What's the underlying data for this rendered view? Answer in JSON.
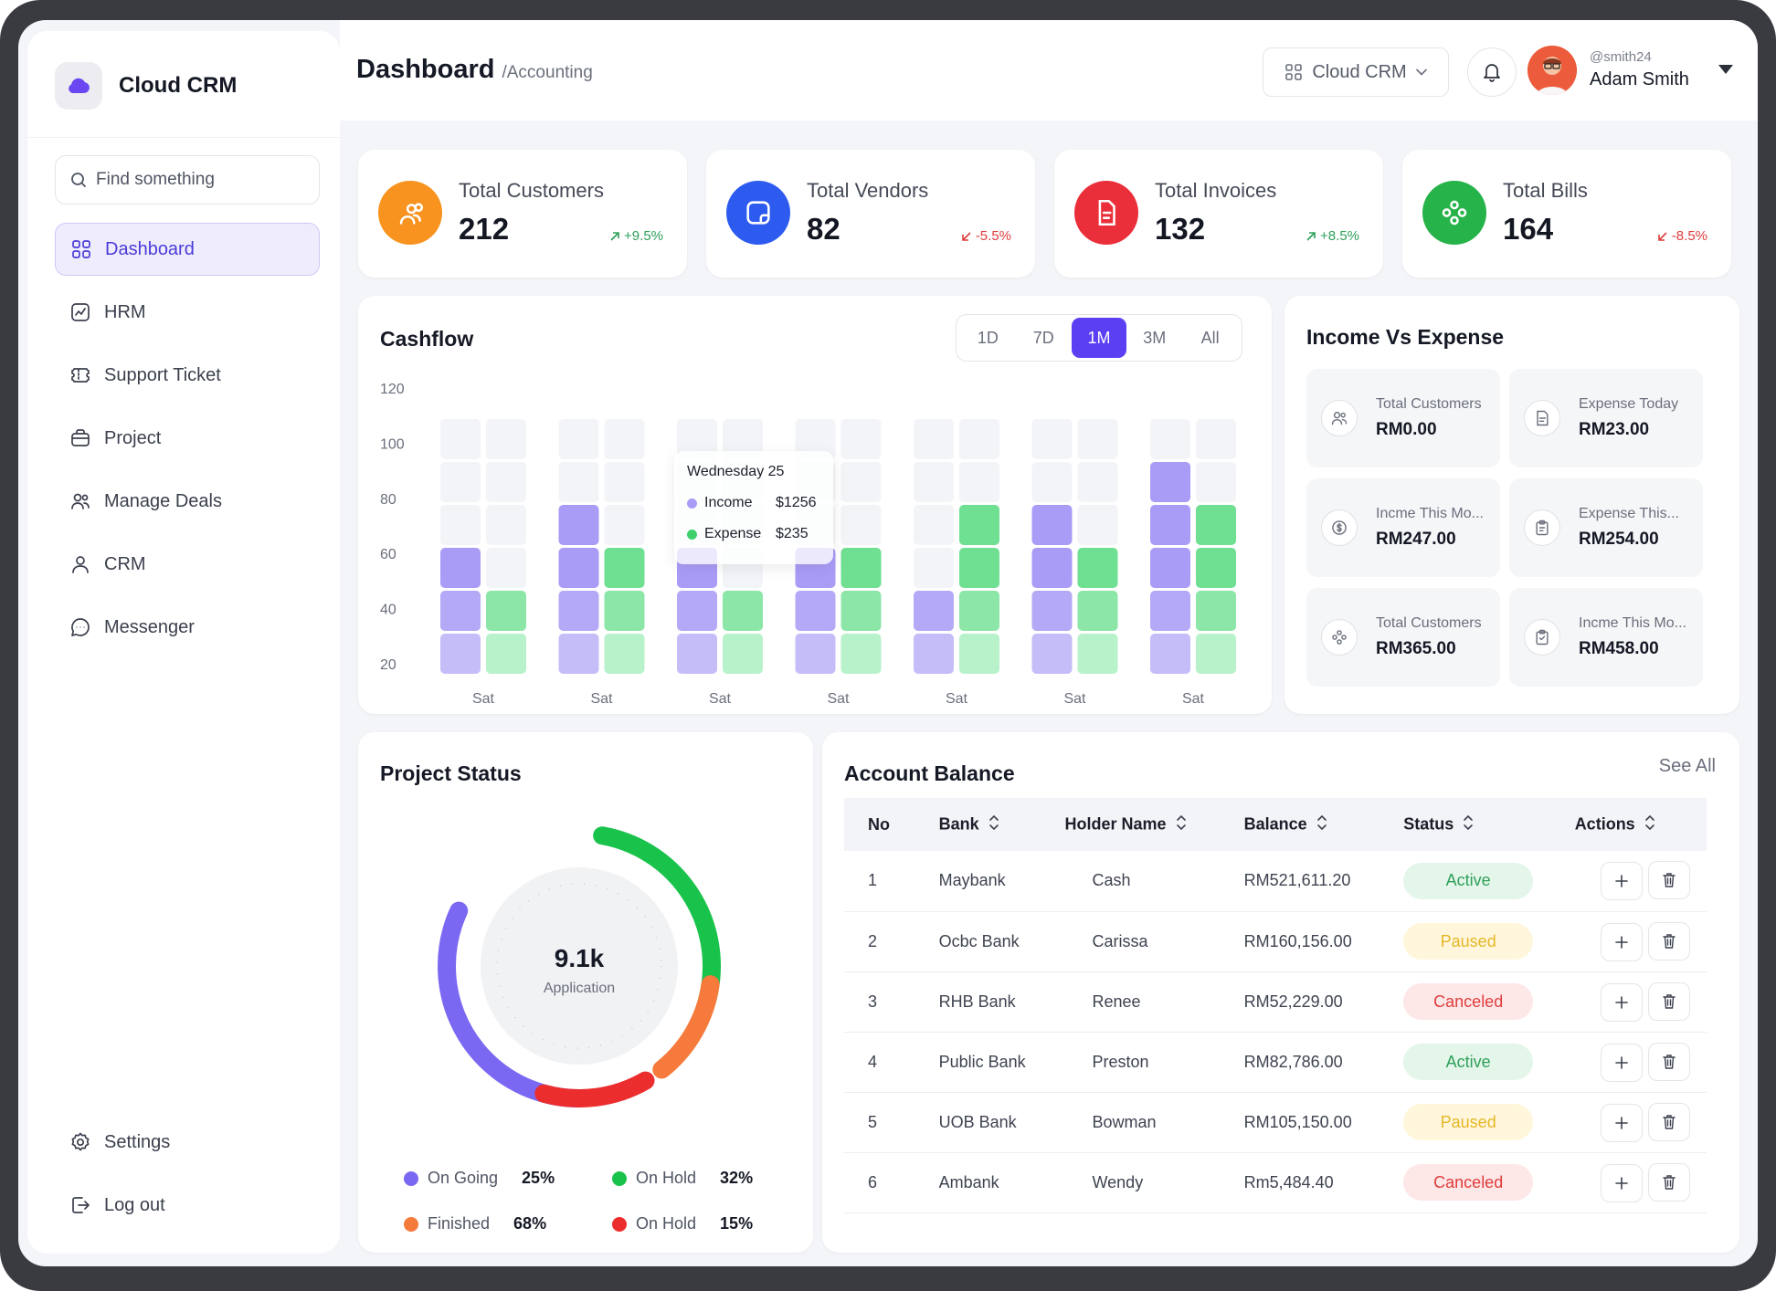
{
  "app": {
    "name": "Cloud CRM"
  },
  "search": {
    "placeholder": "Find something"
  },
  "nav": {
    "items": [
      {
        "label": "Dashboard",
        "icon": "grid-icon",
        "active": true
      },
      {
        "label": "HRM",
        "icon": "chart-icon"
      },
      {
        "label": "Support Ticket",
        "icon": "ticket-icon"
      },
      {
        "label": "Project",
        "icon": "briefcase-icon"
      },
      {
        "label": "Manage Deals",
        "icon": "users-icon"
      },
      {
        "label": "CRM",
        "icon": "user-icon"
      },
      {
        "label": "Messenger",
        "icon": "chat-icon"
      }
    ],
    "bottom": [
      {
        "label": "Settings",
        "icon": "gear-icon"
      },
      {
        "label": "Log out",
        "icon": "logout-icon"
      }
    ]
  },
  "header": {
    "title": "Dashboard",
    "subtitle": "/Accounting",
    "workspace": "Cloud CRM",
    "user_handle": "@smith24",
    "user_name": "Adam Smith"
  },
  "stats": [
    {
      "label": "Total Customers",
      "value": "212",
      "change": "+9.5%",
      "trend": "up",
      "color": "#f7931e"
    },
    {
      "label": "Total Vendors",
      "value": "82",
      "change": "-5.5%",
      "trend": "down",
      "color": "#2d5bf0"
    },
    {
      "label": "Total Invoices",
      "value": "132",
      "change": "+8.5%",
      "trend": "up",
      "color": "#ea2f3a"
    },
    {
      "label": "Total Bills",
      "value": "164",
      "change": "-8.5%",
      "trend": "down",
      "color": "#26b34a"
    }
  ],
  "cashflow": {
    "title": "Cashflow",
    "ranges": [
      "1D",
      "7D",
      "1M",
      "3M",
      "All"
    ],
    "active_range": "1M",
    "tooltip": {
      "title": "Wednesday 25",
      "income_label": "Income",
      "income_value": "$1256",
      "expense_label": "Expense",
      "expense_value": "$235"
    }
  },
  "chart_data": {
    "type": "bar",
    "categories": [
      "Sat",
      "Sat",
      "Sat",
      "Sat",
      "Sat",
      "Sat",
      "Sat"
    ],
    "y_ticks": [
      20,
      40,
      60,
      80,
      100,
      120
    ],
    "ylim": [
      20,
      120
    ],
    "series": [
      {
        "name": "Income",
        "values": [
          60,
          80,
          60,
          60,
          40,
          80,
          100
        ],
        "color": "#a99cf6"
      },
      {
        "name": "Expense",
        "values": [
          40,
          60,
          40,
          60,
          80,
          60,
          80
        ],
        "color": "#6fdf92"
      }
    ]
  },
  "income_expense": {
    "title": "Income Vs Expense",
    "tiles": [
      {
        "label": "Total Customers",
        "value": "RM0.00",
        "icon": "users-icon"
      },
      {
        "label": "Expense Today",
        "value": "RM23.00",
        "icon": "document-icon"
      },
      {
        "label": "Incme This Mo...",
        "value": "RM247.00",
        "icon": "coin-icon"
      },
      {
        "label": "Expense This...",
        "value": "RM254.00",
        "icon": "clipboard-icon"
      },
      {
        "label": "Total Customers",
        "value": "RM365.00",
        "icon": "people-icon"
      },
      {
        "label": "Incme This Mo...",
        "value": "RM458.00",
        "icon": "checklist-icon"
      }
    ]
  },
  "project_status": {
    "title": "Project Status",
    "center_value": "9.1k",
    "center_label": "Application",
    "legend": [
      {
        "label": "On Going",
        "value": "25%",
        "color": "#7b68f2"
      },
      {
        "label": "On Hold",
        "value": "32%",
        "color": "#19c24a"
      },
      {
        "label": "Finished",
        "value": "68%",
        "color": "#f57a3c"
      },
      {
        "label": "On Hold",
        "value": "15%",
        "color": "#ec2d2d"
      }
    ]
  },
  "account_balance": {
    "title": "Account Balance",
    "see_all": "See All",
    "columns": [
      "No",
      "Bank",
      "Holder Name",
      "Balance",
      "Status",
      "Actions"
    ],
    "rows": [
      {
        "no": "1",
        "bank": "Maybank",
        "holder": "Cash",
        "balance": "RM521,611.20",
        "status": "Active"
      },
      {
        "no": "2",
        "bank": "Ocbc Bank",
        "holder": "Carissa",
        "balance": "RM160,156.00",
        "status": "Paused"
      },
      {
        "no": "3",
        "bank": "RHB Bank",
        "holder": "Renee",
        "balance": "RM52,229.00",
        "status": "Canceled"
      },
      {
        "no": "4",
        "bank": "Public Bank",
        "holder": "Preston",
        "balance": "RM82,786.00",
        "status": "Active"
      },
      {
        "no": "5",
        "bank": "UOB Bank",
        "holder": "Bowman",
        "balance": "RM105,150.00",
        "status": "Paused"
      },
      {
        "no": "6",
        "bank": "Ambank",
        "holder": "Wendy",
        "balance": "Rm5,484.40",
        "status": "Canceled"
      }
    ]
  }
}
